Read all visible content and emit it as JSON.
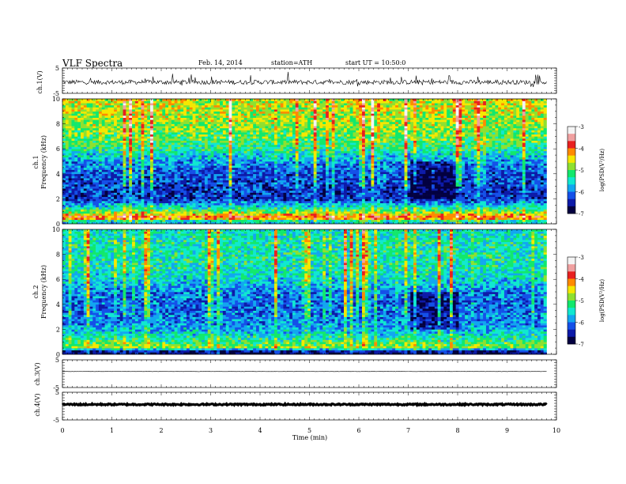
{
  "header": {
    "title": "VLF Spectra",
    "date": "Feb. 14, 2014",
    "station": "station=ATH",
    "start": "start  UT  =  10:50:0"
  },
  "colorbar": {
    "label": "log(PSD(V²/Hz)",
    "ticks": [
      "-3",
      "-4",
      "-5",
      "-6",
      "-7"
    ],
    "colors": [
      "#f4f4f4",
      "#f0a0a0",
      "#e82020",
      "#ff8a00",
      "#f5e800",
      "#8ee030",
      "#12e86c",
      "#10e8d0",
      "#12a6f0",
      "#1450e8",
      "#0d1aa8",
      "#030040"
    ]
  },
  "chart_data": [
    {
      "type": "line",
      "name": "ch1-waveform",
      "ylabel": "ch.1(V)",
      "ylim": [
        -5,
        5
      ],
      "yticks": [
        "5",
        "-5"
      ],
      "xlim": [
        0,
        10
      ],
      "x_end": 9.8,
      "baseline": -0.6,
      "noise_amplitude": 0.9
    },
    {
      "type": "heatmap",
      "name": "ch1-spectrogram",
      "ylabel": "ch.1",
      "ylabel2": "Frequency  (kHz)",
      "xlim": [
        0,
        10
      ],
      "x_end": 9.8,
      "ylim": [
        0,
        10
      ],
      "yticks": [
        "0",
        "2",
        "4",
        "6",
        "8",
        "10"
      ],
      "zlim": [
        -7,
        -3
      ],
      "profile": [
        {
          "f": 0.2,
          "z": -5.6
        },
        {
          "f": 0.5,
          "z": -3.8
        },
        {
          "f": 1.0,
          "z": -5.0
        },
        {
          "f": 2.0,
          "z": -6.4
        },
        {
          "f": 3.0,
          "z": -6.3
        },
        {
          "f": 4.0,
          "z": -6.2
        },
        {
          "f": 5.0,
          "z": -5.9
        },
        {
          "f": 6.0,
          "z": -5.3
        },
        {
          "f": 7.0,
          "z": -5.0
        },
        {
          "f": 8.0,
          "z": -4.8
        },
        {
          "f": 9.0,
          "z": -4.7
        },
        {
          "f": 10.0,
          "z": -4.6
        }
      ]
    },
    {
      "type": "heatmap",
      "name": "ch2-spectrogram",
      "ylabel": "ch.2",
      "ylabel2": "Frequency  (kHz)",
      "xlim": [
        0,
        10
      ],
      "x_end": 9.8,
      "ylim": [
        0,
        10
      ],
      "yticks": [
        "0",
        "2",
        "4",
        "6",
        "8",
        "10"
      ],
      "zlim": [
        -7,
        -3
      ],
      "profile": [
        {
          "f": 0.2,
          "z": -6.8
        },
        {
          "f": 0.6,
          "z": -4.8
        },
        {
          "f": 1.2,
          "z": -5.3
        },
        {
          "f": 2.0,
          "z": -5.8
        },
        {
          "f": 3.0,
          "z": -6.0
        },
        {
          "f": 4.0,
          "z": -6.1
        },
        {
          "f": 5.0,
          "z": -6.0
        },
        {
          "f": 6.0,
          "z": -5.6
        },
        {
          "f": 7.0,
          "z": -5.4
        },
        {
          "f": 8.0,
          "z": -5.4
        },
        {
          "f": 9.0,
          "z": -5.4
        },
        {
          "f": 10.0,
          "z": -5.5
        }
      ]
    },
    {
      "type": "line",
      "name": "ch3-waveform",
      "ylabel": "ch.3(V)",
      "ylim": [
        -5,
        5
      ],
      "yticks": [
        "5",
        "-5"
      ],
      "xlim": [
        0,
        10
      ],
      "x_end": 9.8,
      "baseline": 0.8,
      "noise_amplitude": 0.05
    },
    {
      "type": "line",
      "name": "ch4-waveform",
      "ylabel": "ch.4(V)",
      "ylim": [
        -5,
        5
      ],
      "yticks": [
        "5",
        "-5"
      ],
      "xlim": [
        0,
        10
      ],
      "x_end": 9.8,
      "baseline": 0.6,
      "noise_amplitude": 0.25
    }
  ],
  "xaxis": {
    "label": "Time  (min)",
    "ticks": [
      "0",
      "1",
      "2",
      "3",
      "4",
      "5",
      "6",
      "7",
      "8",
      "9",
      "10"
    ]
  }
}
